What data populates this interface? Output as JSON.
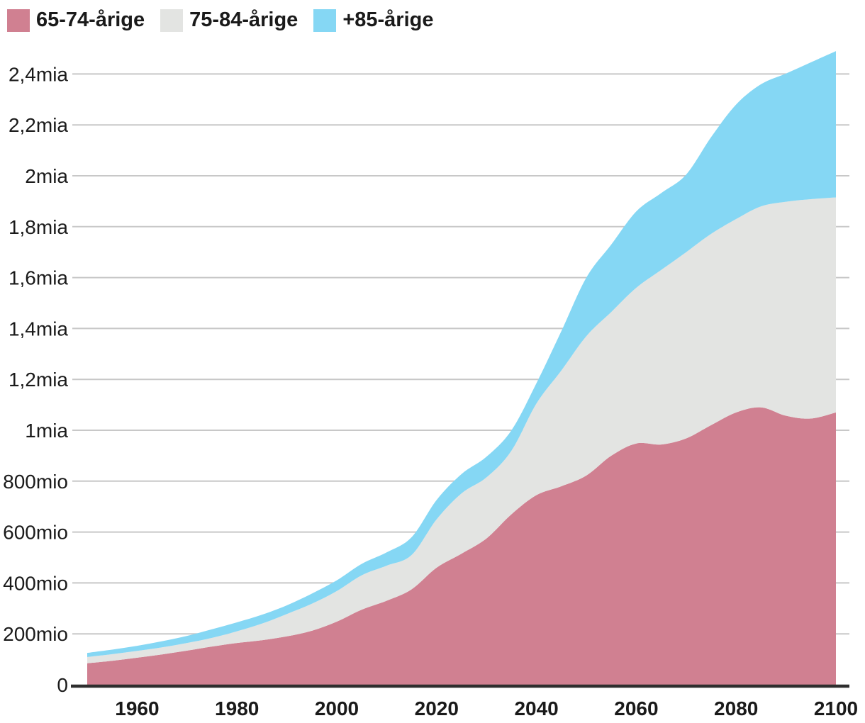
{
  "legend": {
    "items": [
      {
        "label": "65-74-årige"
      },
      {
        "label": "75-84-årige"
      },
      {
        "label": "+85-årige"
      }
    ]
  },
  "chart_data": {
    "type": "area",
    "stacked": true,
    "title": "",
    "xlabel": "",
    "ylabel": "",
    "unit": "millions of people",
    "x": [
      1950,
      1955,
      1960,
      1965,
      1970,
      1975,
      1980,
      1985,
      1990,
      1995,
      2000,
      2005,
      2010,
      2015,
      2020,
      2025,
      2030,
      2035,
      2040,
      2045,
      2050,
      2055,
      2060,
      2065,
      2070,
      2075,
      2080,
      2085,
      2090,
      2095,
      2100
    ],
    "series": [
      {
        "name": "65-74-årige",
        "color": "#d08091",
        "values": [
          84,
          94,
          106,
          119,
          134,
          150,
          164,
          175,
          190,
          212,
          248,
          295,
          330,
          375,
          460,
          515,
          575,
          670,
          745,
          780,
          822,
          900,
          948,
          944,
          968,
          1020,
          1070,
          1090,
          1057,
          1046,
          1070
        ]
      },
      {
        "name": "75-84-årige",
        "color": "#e3e4e2",
        "values": [
          25,
          26,
          27,
          28,
          30,
          34,
          46,
          65,
          88,
          106,
          120,
          135,
          138,
          135,
          190,
          237,
          240,
          250,
          360,
          455,
          548,
          565,
          612,
          686,
          732,
          752,
          760,
          790,
          841,
          862,
          845
        ]
      },
      {
        "name": "+85-årige",
        "color": "#85d7f4",
        "values": [
          16,
          18,
          20,
          24,
          28,
          34,
          35,
          35,
          34,
          40,
          42,
          45,
          52,
          70,
          76,
          76,
          81,
          80,
          80,
          155,
          230,
          265,
          300,
          302,
          305,
          380,
          450,
          480,
          504,
          538,
          575
        ]
      }
    ],
    "y_axis": {
      "range": [
        0,
        2400
      ],
      "ticks": [
        0,
        200,
        400,
        600,
        800,
        1000,
        1200,
        1400,
        1600,
        1800,
        2000,
        2200,
        2400
      ],
      "tick_labels": [
        "0",
        "200mio",
        "400mio",
        "600mio",
        "800mio",
        "1mia",
        "1,2mia",
        "1,4mia",
        "1,6mia",
        "1,8mia",
        "2mia",
        "2,2mia",
        "2,4mia"
      ]
    },
    "x_axis": {
      "range": [
        1950,
        2100
      ],
      "ticks": [
        1960,
        1980,
        2000,
        2020,
        2040,
        2060,
        2080,
        2100
      ],
      "tick_labels": [
        "1960",
        "1980",
        "2000",
        "2020",
        "2040",
        "2060",
        "2080",
        "2100"
      ]
    },
    "grid": true,
    "legend_position": "top-left"
  },
  "style": {
    "background": "#ffffff",
    "grid_color": "#c8c8c8",
    "axis_color": "#2e2e2e",
    "text_color": "#1a1a1a"
  }
}
